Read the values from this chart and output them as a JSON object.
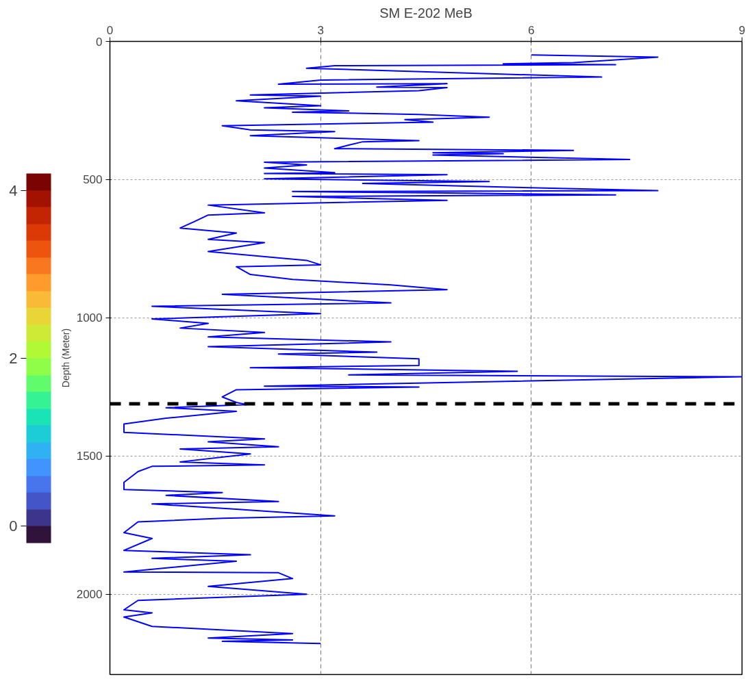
{
  "chart_data": {
    "type": "line",
    "title": "SM E-202 MeB",
    "ylabel": "Depth (Meter)",
    "xlim": [
      0,
      9
    ],
    "xticks": [
      0,
      3,
      6,
      9
    ],
    "ylim": [
      2290,
      0
    ],
    "yticks": [
      0,
      500,
      1000,
      1500,
      2000
    ],
    "grid": true,
    "marker": "none",
    "line_style": "solid",
    "clim": [
      -0.2,
      4.2
    ],
    "cticks": [
      0,
      2,
      4
    ],
    "ref_lines": [
      {
        "axis": "y",
        "value": 1311,
        "color": "#000000",
        "line_style": "dashed"
      }
    ],
    "series": [
      {
        "color": "#0000ff",
        "x": [
          6.0,
          7.8,
          6.6,
          5.6,
          7.2,
          3.2,
          2.8,
          7.0,
          3.0,
          2.4,
          4.8,
          3.8,
          4.8,
          4.4,
          2.0,
          3.0,
          1.8,
          3.0,
          2.2,
          3.4,
          2.6,
          4.4,
          5.4,
          4.2,
          4.6,
          1.6,
          2.0,
          3.2,
          2.0,
          4.4,
          3.6,
          3.4,
          3.2,
          6.6,
          4.6,
          5.6,
          4.6,
          7.4,
          2.2,
          2.8,
          2.2,
          3.2,
          2.2,
          4.8,
          2.2,
          5.4,
          3.6,
          5.0,
          7.8,
          2.6,
          4.6,
          7.2,
          2.6,
          4.8,
          1.4,
          2.2,
          1.4,
          1.2,
          1.0,
          1.8,
          1.4,
          2.2,
          1.4,
          2.8,
          3.0,
          1.8,
          2.0,
          2.6,
          4.0,
          4.8,
          1.6,
          4.0,
          0.6,
          3.0,
          0.6,
          1.4,
          1.0,
          2.2,
          1.4,
          4.0,
          1.4,
          3.8,
          2.4,
          4.4,
          4.4,
          2.0,
          5.8,
          3.4,
          9.0,
          2.2,
          4.4,
          1.8,
          1.6,
          1.8,
          1.95,
          0.8,
          1.8,
          0.8,
          0.2,
          0.2,
          2.2,
          1.4,
          2.4,
          1.0,
          2.0,
          1.0,
          2.2,
          0.6,
          0.4,
          0.2,
          0.2,
          1.6,
          0.8,
          2.4,
          0.6,
          1.8,
          3.2,
          1.6,
          0.4,
          0.2,
          0.6,
          0.2,
          2.0,
          0.6,
          1.8,
          0.2,
          2.4,
          2.6,
          1.4,
          2.8,
          0.4,
          0.2,
          0.6,
          0.2,
          0.6,
          2.6,
          1.4,
          2.6,
          1.6,
          3.0
        ],
        "values": [
          49,
          57,
          77,
          81,
          84,
          88,
          97,
          129,
          140,
          155,
          153,
          165,
          167,
          178,
          194,
          198,
          215,
          233,
          240,
          251,
          256,
          264,
          274,
          283,
          292,
          305,
          320,
          326,
          341,
          359,
          363,
          375,
          388,
          394,
          403,
          406,
          411,
          427,
          437,
          447,
          458,
          475,
          478,
          482,
          497,
          507,
          514,
          523,
          540,
          543,
          548,
          555,
          561,
          575,
          592,
          620,
          628,
          652,
          675,
          693,
          716,
          728,
          760,
          792,
          808,
          815,
          843,
          861,
          881,
          898,
          915,
          946,
          958,
          985,
          1004,
          1020,
          1037,
          1053,
          1069,
          1087,
          1104,
          1124,
          1131,
          1148,
          1172,
          1180,
          1193,
          1206,
          1213,
          1247,
          1250,
          1260,
          1286,
          1306,
          1314,
          1325,
          1338,
          1363,
          1384,
          1414,
          1438,
          1448,
          1466,
          1474,
          1492,
          1521,
          1532,
          1537,
          1556,
          1595,
          1621,
          1632,
          1642,
          1664,
          1673,
          1692,
          1716,
          1725,
          1738,
          1777,
          1798,
          1841,
          1857,
          1870,
          1880,
          1919,
          1922,
          1943,
          1971,
          2000,
          2022,
          2056,
          2067,
          2082,
          2116,
          2142,
          2158,
          2165,
          2170,
          2178
        ]
      }
    ]
  }
}
